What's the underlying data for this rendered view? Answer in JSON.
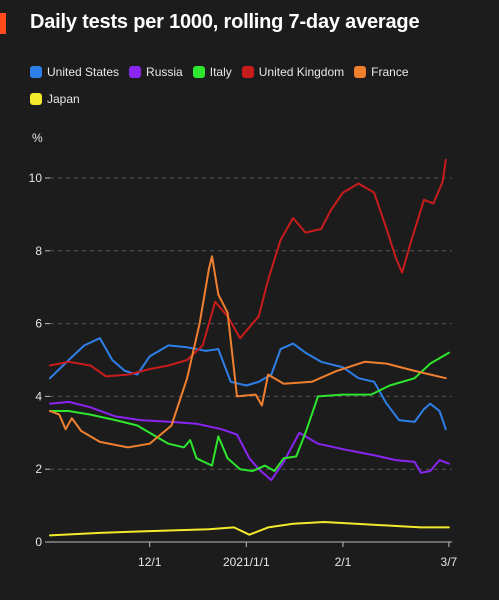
{
  "title": "Daily tests per 1000, rolling 7-day average",
  "colors": {
    "accent": "#ff4a1c",
    "background": "#1c1c1c"
  },
  "legend": [
    {
      "name": "United States",
      "color": "#2f7fe8"
    },
    {
      "name": "Russia",
      "color": "#8a24f0"
    },
    {
      "name": "Italy",
      "color": "#2ee62e"
    },
    {
      "name": "United Kingdom",
      "color": "#c81c1c"
    },
    {
      "name": "France",
      "color": "#f08030"
    },
    {
      "name": "Japan",
      "color": "#f2ea2a"
    }
  ],
  "chart_data": {
    "type": "line",
    "title": "Daily tests per 1000, rolling 7-day average",
    "ylabel": "%",
    "ylim": [
      0,
      10.5
    ],
    "yticks": [
      0,
      2,
      4,
      6,
      8,
      10
    ],
    "xlim": [
      "2020-10-30",
      "2021-03-08"
    ],
    "xticks": [
      {
        "date": "2020-12-01",
        "label": "12/1"
      },
      {
        "date": "2021-01-01",
        "label": "2021/1/1"
      },
      {
        "date": "2021-02-01",
        "label": "2/1"
      },
      {
        "date": "2021-03-07",
        "label": "3/7"
      }
    ],
    "grid": "horizontal dashed",
    "legend_position": "top",
    "series": [
      {
        "name": "United States",
        "color": "#2f7fe8",
        "points": [
          [
            "2020-10-30",
            4.5
          ],
          [
            "2020-11-05",
            5.0
          ],
          [
            "2020-11-10",
            5.4
          ],
          [
            "2020-11-15",
            5.6
          ],
          [
            "2020-11-19",
            5.0
          ],
          [
            "2020-11-23",
            4.7
          ],
          [
            "2020-11-27",
            4.6
          ],
          [
            "2020-12-01",
            5.1
          ],
          [
            "2020-12-07",
            5.4
          ],
          [
            "2020-12-13",
            5.35
          ],
          [
            "2020-12-19",
            5.25
          ],
          [
            "2020-12-23",
            5.3
          ],
          [
            "2020-12-27",
            4.4
          ],
          [
            "2021-01-01",
            4.3
          ],
          [
            "2021-01-05",
            4.4
          ],
          [
            "2021-01-09",
            4.6
          ],
          [
            "2021-01-12",
            5.3
          ],
          [
            "2021-01-16",
            5.45
          ],
          [
            "2021-01-20",
            5.2
          ],
          [
            "2021-01-25",
            4.95
          ],
          [
            "2021-02-01",
            4.8
          ],
          [
            "2021-02-06",
            4.5
          ],
          [
            "2021-02-11",
            4.4
          ],
          [
            "2021-02-15",
            3.8
          ],
          [
            "2021-02-19",
            3.35
          ],
          [
            "2021-02-24",
            3.3
          ],
          [
            "2021-02-27",
            3.65
          ],
          [
            "2021-03-01",
            3.8
          ],
          [
            "2021-03-04",
            3.6
          ],
          [
            "2021-03-06",
            3.1
          ]
        ]
      },
      {
        "name": "Russia",
        "color": "#8a24f0",
        "points": [
          [
            "2020-10-30",
            3.8
          ],
          [
            "2020-11-05",
            3.85
          ],
          [
            "2020-11-12",
            3.7
          ],
          [
            "2020-11-20",
            3.45
          ],
          [
            "2020-11-28",
            3.35
          ],
          [
            "2020-12-08",
            3.3
          ],
          [
            "2020-12-16",
            3.25
          ],
          [
            "2020-12-24",
            3.1
          ],
          [
            "2020-12-29",
            2.95
          ],
          [
            "2021-01-02",
            2.3
          ],
          [
            "2021-01-05",
            2.0
          ],
          [
            "2021-01-09",
            1.7
          ],
          [
            "2021-01-13",
            2.2
          ],
          [
            "2021-01-18",
            3.0
          ],
          [
            "2021-01-24",
            2.7
          ],
          [
            "2021-02-01",
            2.55
          ],
          [
            "2021-02-10",
            2.4
          ],
          [
            "2021-02-18",
            2.25
          ],
          [
            "2021-02-24",
            2.2
          ],
          [
            "2021-02-26",
            1.9
          ],
          [
            "2021-03-01",
            1.95
          ],
          [
            "2021-03-04",
            2.25
          ],
          [
            "2021-03-07",
            2.15
          ]
        ]
      },
      {
        "name": "Italy",
        "color": "#2ee62e",
        "points": [
          [
            "2020-10-30",
            3.6
          ],
          [
            "2020-11-05",
            3.6
          ],
          [
            "2020-11-12",
            3.5
          ],
          [
            "2020-11-20",
            3.35
          ],
          [
            "2020-11-27",
            3.2
          ],
          [
            "2020-12-02",
            2.95
          ],
          [
            "2020-12-07",
            2.7
          ],
          [
            "2020-12-12",
            2.6
          ],
          [
            "2020-12-14",
            2.8
          ],
          [
            "2020-12-16",
            2.3
          ],
          [
            "2020-12-21",
            2.1
          ],
          [
            "2020-12-23",
            2.9
          ],
          [
            "2020-12-26",
            2.3
          ],
          [
            "2020-12-30",
            2.0
          ],
          [
            "2021-01-03",
            1.95
          ],
          [
            "2021-01-07",
            2.1
          ],
          [
            "2021-01-10",
            1.95
          ],
          [
            "2021-01-13",
            2.3
          ],
          [
            "2021-01-17",
            2.35
          ],
          [
            "2021-01-20",
            3.0
          ],
          [
            "2021-01-24",
            4.0
          ],
          [
            "2021-02-01",
            4.05
          ],
          [
            "2021-02-10",
            4.05
          ],
          [
            "2021-02-16",
            4.3
          ],
          [
            "2021-02-24",
            4.5
          ],
          [
            "2021-03-01",
            4.9
          ],
          [
            "2021-03-07",
            5.2
          ]
        ]
      },
      {
        "name": "United Kingdom",
        "color": "#c81c1c",
        "points": [
          [
            "2020-10-30",
            4.85
          ],
          [
            "2020-11-05",
            4.95
          ],
          [
            "2020-11-12",
            4.85
          ],
          [
            "2020-11-17",
            4.55
          ],
          [
            "2020-11-24",
            4.6
          ],
          [
            "2020-12-01",
            4.75
          ],
          [
            "2020-12-07",
            4.85
          ],
          [
            "2020-12-13",
            5.0
          ],
          [
            "2020-12-18",
            5.4
          ],
          [
            "2020-12-22",
            6.6
          ],
          [
            "2020-12-26",
            6.2
          ],
          [
            "2020-12-30",
            5.6
          ],
          [
            "2021-01-02",
            5.9
          ],
          [
            "2021-01-05",
            6.2
          ],
          [
            "2021-01-08",
            7.2
          ],
          [
            "2021-01-12",
            8.3
          ],
          [
            "2021-01-16",
            8.9
          ],
          [
            "2021-01-20",
            8.5
          ],
          [
            "2021-01-25",
            8.6
          ],
          [
            "2021-01-28",
            9.1
          ],
          [
            "2021-02-01",
            9.6
          ],
          [
            "2021-02-06",
            9.85
          ],
          [
            "2021-02-11",
            9.6
          ],
          [
            "2021-02-15",
            8.6
          ],
          [
            "2021-02-18",
            7.8
          ],
          [
            "2021-02-20",
            7.4
          ],
          [
            "2021-02-23",
            8.3
          ],
          [
            "2021-02-27",
            9.4
          ],
          [
            "2021-03-02",
            9.3
          ],
          [
            "2021-03-05",
            9.9
          ],
          [
            "2021-03-06",
            10.5
          ]
        ]
      },
      {
        "name": "France",
        "color": "#f08030",
        "points": [
          [
            "2020-10-30",
            3.6
          ],
          [
            "2020-11-02",
            3.5
          ],
          [
            "2020-11-04",
            3.1
          ],
          [
            "2020-11-06",
            3.4
          ],
          [
            "2020-11-09",
            3.05
          ],
          [
            "2020-11-15",
            2.75
          ],
          [
            "2020-11-24",
            2.6
          ],
          [
            "2020-12-01",
            2.7
          ],
          [
            "2020-12-08",
            3.2
          ],
          [
            "2020-12-13",
            4.5
          ],
          [
            "2020-12-17",
            6.0
          ],
          [
            "2020-12-20",
            7.5
          ],
          [
            "2020-12-21",
            7.85
          ],
          [
            "2020-12-23",
            6.8
          ],
          [
            "2020-12-26",
            6.3
          ],
          [
            "2020-12-29",
            4.0
          ],
          [
            "2021-01-04",
            4.05
          ],
          [
            "2021-01-06",
            3.75
          ],
          [
            "2021-01-08",
            4.6
          ],
          [
            "2021-01-13",
            4.35
          ],
          [
            "2021-01-22",
            4.4
          ],
          [
            "2021-01-30",
            4.7
          ],
          [
            "2021-02-08",
            4.95
          ],
          [
            "2021-02-15",
            4.9
          ],
          [
            "2021-02-24",
            4.7
          ],
          [
            "2021-03-06",
            4.5
          ]
        ]
      },
      {
        "name": "Japan",
        "color": "#f2ea2a",
        "points": [
          [
            "2020-10-30",
            0.18
          ],
          [
            "2020-11-15",
            0.25
          ],
          [
            "2020-12-01",
            0.3
          ],
          [
            "2020-12-20",
            0.35
          ],
          [
            "2020-12-28",
            0.4
          ],
          [
            "2021-01-02",
            0.2
          ],
          [
            "2021-01-08",
            0.4
          ],
          [
            "2021-01-16",
            0.5
          ],
          [
            "2021-01-26",
            0.55
          ],
          [
            "2021-02-05",
            0.5
          ],
          [
            "2021-02-16",
            0.45
          ],
          [
            "2021-02-26",
            0.4
          ],
          [
            "2021-03-07",
            0.4
          ]
        ]
      }
    ]
  }
}
